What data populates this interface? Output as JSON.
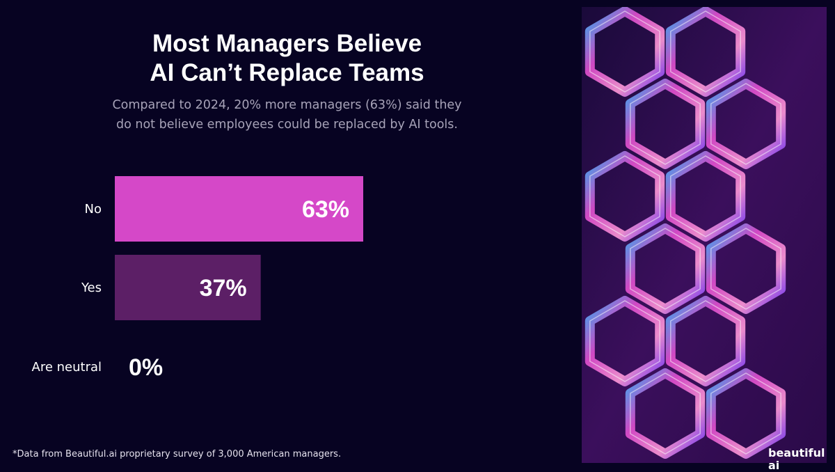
{
  "title_line1": "Most Managers Believe",
  "title_line2": "AI Can’t Replace Teams",
  "subtitle_line1": "Compared to 2024, 20% more managers (63%) said they",
  "subtitle_line2": "do not believe employees could be replaced by AI tools.",
  "footnote": "*Data from Beautiful.ai proprietary survey of 3,000 American managers.",
  "logo": "beautiful ai",
  "colors": {
    "background": "#070322",
    "bar_no": "#d548c8",
    "bar_yes": "#5c1f66"
  },
  "chart_data": {
    "type": "bar",
    "orientation": "horizontal",
    "categories": [
      "No",
      "Yes",
      "Are neutral"
    ],
    "values": [
      63,
      37,
      0
    ],
    "data_labels": [
      "63%",
      "37%",
      "0%"
    ],
    "colors": [
      "#d548c8",
      "#5c1f66",
      "#5c1f66"
    ],
    "xlim": [
      0,
      100
    ],
    "grid": false
  }
}
